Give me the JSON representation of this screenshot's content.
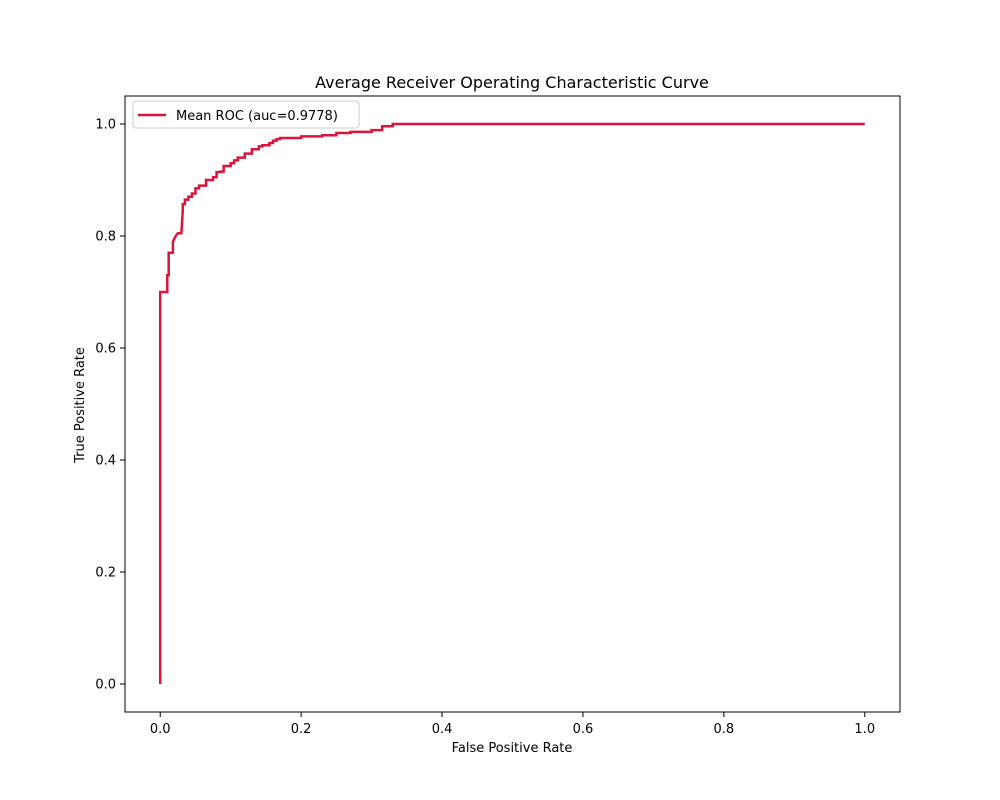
{
  "chart_data": {
    "type": "line",
    "title": "Average Receiver Operating Characteristic Curve",
    "xlabel": "False Positive Rate",
    "ylabel": "True Positive Rate",
    "xlim": [
      -0.05,
      1.05
    ],
    "ylim": [
      -0.05,
      1.05
    ],
    "xticks": [
      0.0,
      0.2,
      0.4,
      0.6,
      0.8,
      1.0
    ],
    "xtick_labels": [
      "0.0",
      "0.2",
      "0.4",
      "0.6",
      "0.8",
      "1.0"
    ],
    "yticks": [
      0.0,
      0.2,
      0.4,
      0.6,
      0.8,
      1.0
    ],
    "ytick_labels": [
      "0.0",
      "0.2",
      "0.4",
      "0.6",
      "0.8",
      "1.0"
    ],
    "grid": false,
    "legend_position": "upper left",
    "series": [
      {
        "name": "Mean ROC (auc=0.9778)",
        "color": "#dc143c",
        "x": [
          0.0,
          0.0,
          0.01,
          0.01,
          0.012,
          0.012,
          0.018,
          0.018,
          0.022,
          0.025,
          0.03,
          0.032,
          0.032,
          0.035,
          0.035,
          0.04,
          0.04,
          0.045,
          0.045,
          0.05,
          0.05,
          0.055,
          0.055,
          0.065,
          0.065,
          0.075,
          0.075,
          0.08,
          0.08,
          0.085,
          0.085,
          0.09,
          0.09,
          0.1,
          0.1,
          0.105,
          0.105,
          0.11,
          0.11,
          0.12,
          0.12,
          0.13,
          0.13,
          0.14,
          0.14,
          0.145,
          0.145,
          0.155,
          0.155,
          0.16,
          0.16,
          0.165,
          0.165,
          0.17,
          0.17,
          0.2,
          0.2,
          0.23,
          0.23,
          0.25,
          0.25,
          0.27,
          0.27,
          0.3,
          0.3,
          0.315,
          0.315,
          0.33,
          0.33,
          1.0
        ],
        "y": [
          0.0,
          0.7,
          0.7,
          0.73,
          0.73,
          0.77,
          0.77,
          0.79,
          0.8,
          0.805,
          0.805,
          0.845,
          0.857,
          0.857,
          0.865,
          0.865,
          0.87,
          0.87,
          0.876,
          0.876,
          0.885,
          0.885,
          0.89,
          0.89,
          0.9,
          0.9,
          0.905,
          0.905,
          0.914,
          0.914,
          0.915,
          0.915,
          0.925,
          0.925,
          0.93,
          0.93,
          0.935,
          0.935,
          0.94,
          0.94,
          0.947,
          0.947,
          0.955,
          0.955,
          0.96,
          0.96,
          0.962,
          0.962,
          0.966,
          0.966,
          0.97,
          0.97,
          0.973,
          0.973,
          0.975,
          0.975,
          0.978,
          0.978,
          0.98,
          0.98,
          0.984,
          0.984,
          0.986,
          0.986,
          0.989,
          0.989,
          0.996,
          0.996,
          1.0,
          1.0
        ]
      }
    ]
  }
}
